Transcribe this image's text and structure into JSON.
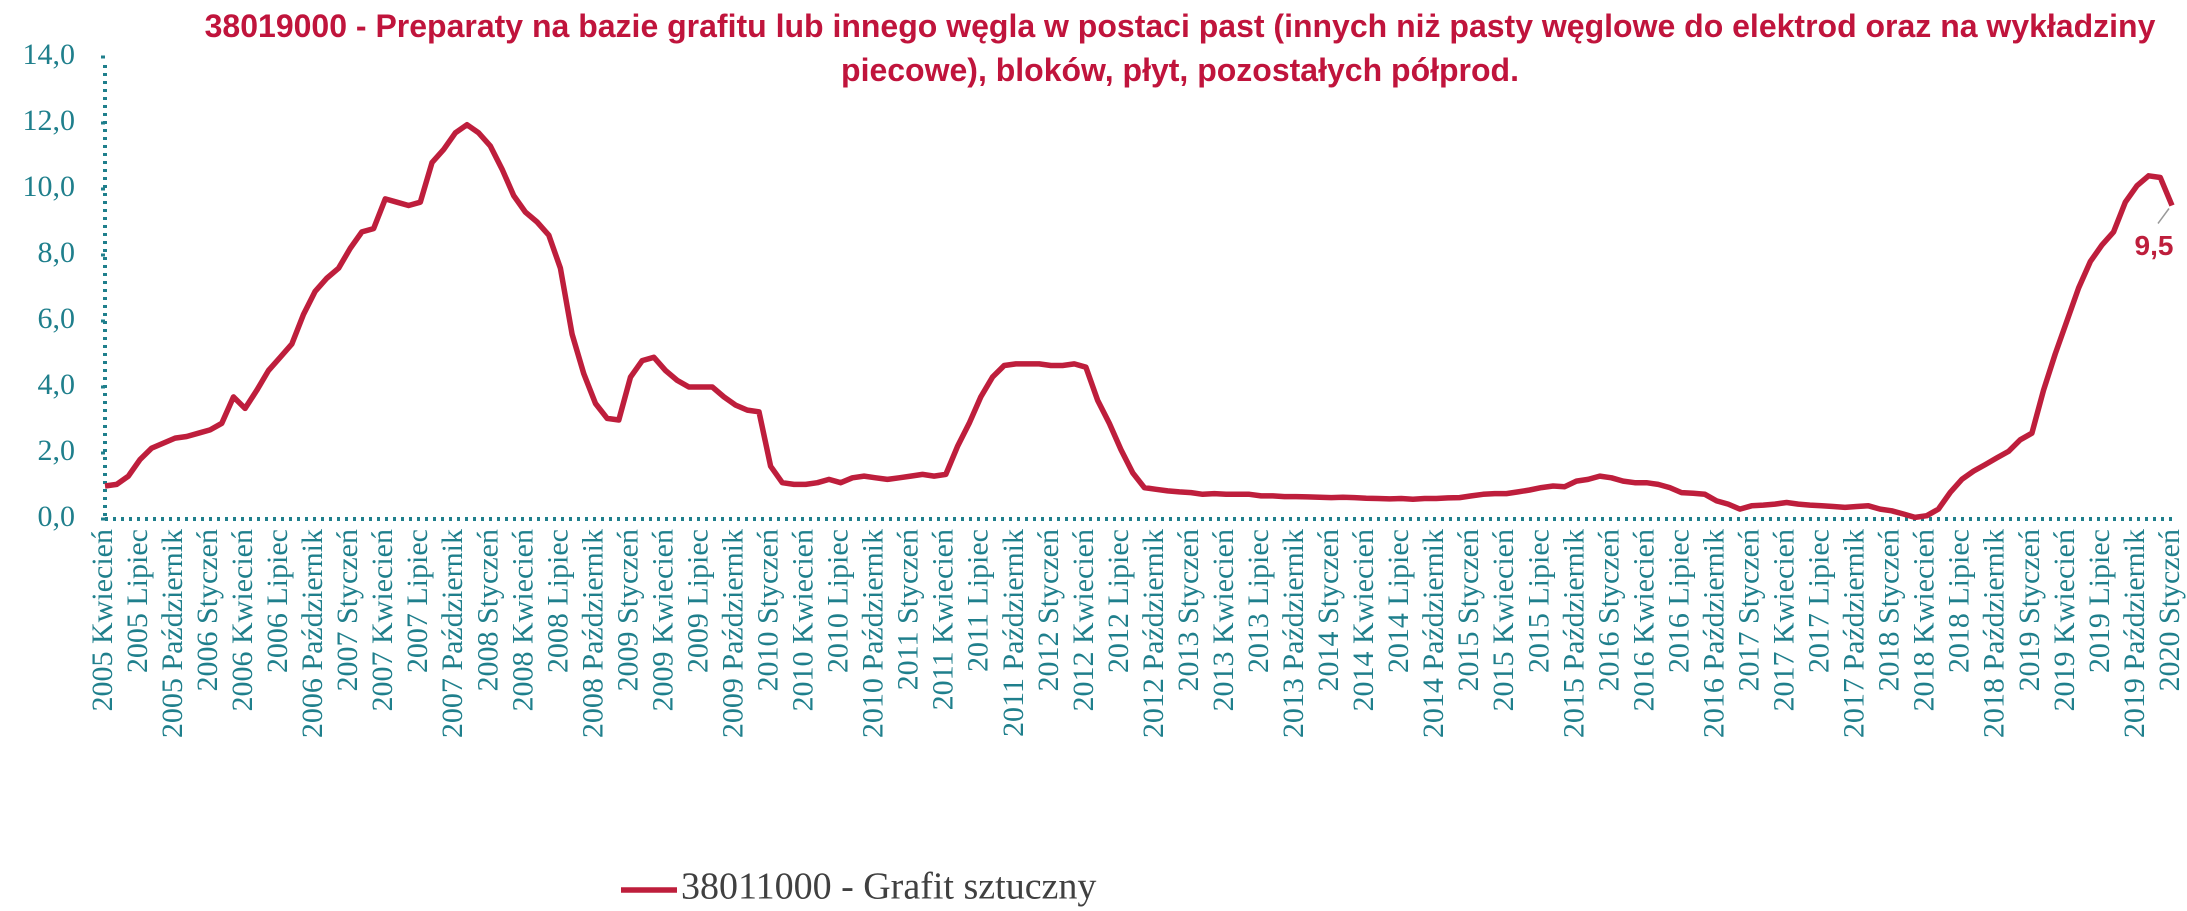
{
  "chart_data": {
    "type": "line",
    "title": "38019000 - Preparaty na bazie grafitu lub innego węgla w postaci past (innych niż pasty węglowe do elektrod oraz na wykładziny piecowe), bloków, płyt, pozostałych półprod.",
    "categories": [
      "2005 Kwiecień",
      null,
      null,
      "2005 Lipiec",
      null,
      null,
      "2005 Październik",
      null,
      null,
      "2006 Styczeń",
      null,
      null,
      "2006 Kwiecień",
      null,
      null,
      "2006 Lipiec",
      null,
      null,
      "2006 Październik",
      null,
      null,
      "2007 Styczeń",
      null,
      null,
      "2007 Kwiecień",
      null,
      null,
      "2007 Lipiec",
      null,
      null,
      "2007 Październik",
      null,
      null,
      "2008 Styczeń",
      null,
      null,
      "2008 Kwiecień",
      null,
      null,
      "2008 Lipiec",
      null,
      null,
      "2008 Październik",
      null,
      null,
      "2009 Styczeń",
      null,
      null,
      "2009 Kwiecień",
      null,
      null,
      "2009 Lipiec",
      null,
      null,
      "2009 Październik",
      null,
      null,
      "2010 Styczeń",
      null,
      null,
      "2010 Kwiecień",
      null,
      null,
      "2010 Lipiec",
      null,
      null,
      "2010 Październik",
      null,
      null,
      "2011 Styczeń",
      null,
      null,
      "2011 Kwiecień",
      null,
      null,
      "2011 Lipiec",
      null,
      null,
      "2011 Październik",
      null,
      null,
      "2012 Styczeń",
      null,
      null,
      "2012 Kwiecień",
      null,
      null,
      "2012 Lipiec",
      null,
      null,
      "2012 Październik",
      null,
      null,
      "2013 Styczeń",
      null,
      null,
      "2013 Kwiecień",
      null,
      null,
      "2013 Lipiec",
      null,
      null,
      "2013 Październik",
      null,
      null,
      "2014 Styczeń",
      null,
      null,
      "2014 Kwiecień",
      null,
      null,
      "2014 Lipiec",
      null,
      null,
      "2014 Październik",
      null,
      null,
      "2015 Styczeń",
      null,
      null,
      "2015 Kwiecień",
      null,
      null,
      "2015 Lipiec",
      null,
      null,
      "2015 Październik",
      null,
      null,
      "2016 Styczeń",
      null,
      null,
      "2016 Kwiecień",
      null,
      null,
      "2016 Lipiec",
      null,
      null,
      "2016 Październik",
      null,
      null,
      "2017 Styczeń",
      null,
      null,
      "2017 Kwiecień",
      null,
      null,
      "2017 Lipiec",
      null,
      null,
      "2017 Październik",
      null,
      null,
      "2018 Styczeń",
      null,
      null,
      "2018 Kwiecień",
      null,
      null,
      "2018 Lipiec",
      null,
      null,
      "2018 Październik",
      null,
      null,
      "2019 Styczeń",
      null,
      null,
      "2019 Kwiecień",
      null,
      null,
      "2019 Lipiec",
      null,
      null,
      "2019 Październik",
      null,
      null,
      "2020 Styczeń"
    ],
    "series": [
      {
        "name": "38011000 - Grafit sztuczny",
        "color": "#be1e3c",
        "values": [
          1.0,
          1.05,
          1.3,
          1.8,
          2.15,
          2.3,
          2.45,
          2.5,
          2.6,
          2.7,
          2.9,
          3.7,
          3.35,
          3.9,
          4.5,
          4.9,
          5.3,
          6.2,
          6.9,
          7.3,
          7.6,
          8.2,
          8.7,
          8.8,
          9.7,
          9.6,
          9.5,
          9.6,
          10.8,
          11.2,
          11.7,
          11.95,
          11.7,
          11.3,
          10.6,
          9.8,
          9.3,
          9.0,
          8.6,
          7.6,
          5.6,
          4.4,
          3.5,
          3.05,
          3.0,
          4.3,
          4.8,
          4.9,
          4.5,
          4.2,
          4.0,
          4.0,
          4.0,
          3.7,
          3.45,
          3.3,
          3.25,
          1.6,
          1.1,
          1.05,
          1.05,
          1.1,
          1.2,
          1.1,
          1.25,
          1.3,
          1.25,
          1.2,
          1.25,
          1.3,
          1.35,
          1.3,
          1.35,
          2.2,
          2.9,
          3.7,
          4.3,
          4.65,
          4.7,
          4.7,
          4.7,
          4.65,
          4.65,
          4.7,
          4.6,
          3.6,
          2.9,
          2.1,
          1.4,
          0.95,
          0.9,
          0.85,
          0.82,
          0.8,
          0.75,
          0.77,
          0.75,
          0.75,
          0.75,
          0.7,
          0.7,
          0.68,
          0.68,
          0.67,
          0.66,
          0.65,
          0.66,
          0.65,
          0.63,
          0.62,
          0.61,
          0.62,
          0.6,
          0.62,
          0.62,
          0.64,
          0.65,
          0.7,
          0.75,
          0.77,
          0.77,
          0.82,
          0.88,
          0.95,
          1.0,
          0.98,
          1.15,
          1.2,
          1.3,
          1.25,
          1.15,
          1.1,
          1.1,
          1.05,
          0.95,
          0.8,
          0.78,
          0.75,
          0.55,
          0.45,
          0.3,
          0.4,
          0.42,
          0.45,
          0.5,
          0.45,
          0.42,
          0.4,
          0.38,
          0.35,
          0.38,
          0.4,
          0.3,
          0.25,
          0.15,
          0.05,
          0.1,
          0.3,
          0.8,
          1.2,
          1.45,
          1.65,
          1.85,
          2.05,
          2.4,
          2.6,
          3.9,
          5.0,
          6.0,
          7.0,
          7.8,
          8.3,
          8.7,
          9.6,
          10.1,
          10.4,
          10.35,
          9.5
        ],
        "value_labels": [
          null,
          null,
          null,
          null,
          null,
          null,
          null,
          null,
          null,
          null,
          null,
          null,
          null,
          null,
          null,
          null,
          null,
          null,
          null,
          null,
          null,
          null,
          null,
          null,
          null,
          null,
          null,
          null,
          null,
          null,
          null,
          null,
          null,
          null,
          null,
          null,
          null,
          null,
          null,
          null,
          null,
          null,
          null,
          null,
          null,
          null,
          null,
          null,
          null,
          null,
          null,
          null,
          null,
          null,
          null,
          null,
          null,
          null,
          null,
          null,
          null,
          null,
          null,
          null,
          null,
          null,
          null,
          null,
          null,
          null,
          null,
          null,
          null,
          null,
          null,
          null,
          null,
          null,
          null,
          null,
          null,
          null,
          null,
          null,
          null,
          null,
          null,
          null,
          null,
          null,
          null,
          null,
          null,
          null,
          null,
          null,
          null,
          null,
          null,
          null,
          null,
          null,
          null,
          null,
          null,
          null,
          null,
          null,
          null,
          null,
          null,
          null,
          null,
          null,
          null,
          null,
          null,
          null,
          null,
          null,
          null,
          null,
          null,
          null,
          null,
          null,
          null,
          null,
          null,
          null,
          null,
          null,
          null,
          null,
          null,
          null,
          null,
          null,
          null,
          null,
          null,
          null,
          null,
          null,
          null,
          null,
          null,
          null,
          null,
          null,
          null,
          null,
          null,
          null,
          null,
          null,
          null,
          null,
          null,
          null,
          null,
          null,
          null,
          null,
          null,
          null,
          null,
          null,
          null,
          null,
          null,
          null,
          null,
          null,
          null,
          null,
          null,
          "9,5"
        ]
      }
    ],
    "ylim": [
      0,
      14
    ],
    "yticks": [
      {
        "value": 0,
        "label": "0,0"
      },
      {
        "value": 2,
        "label": "2,0"
      },
      {
        "value": 4,
        "label": "4,0"
      },
      {
        "value": 6,
        "label": "6,0"
      },
      {
        "value": 8,
        "label": "8,0"
      },
      {
        "value": 10,
        "label": "10,0"
      },
      {
        "value": 12,
        "label": "12,0"
      },
      {
        "value": 14,
        "label": "14,0"
      }
    ],
    "legend": "bottom"
  }
}
